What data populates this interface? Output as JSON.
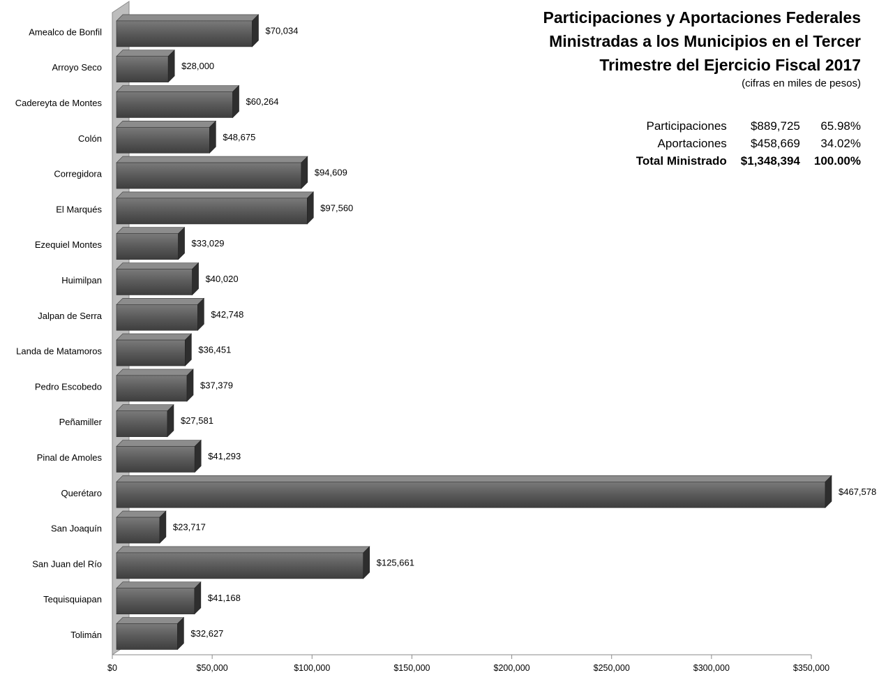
{
  "title_lines": [
    "Participaciones y Aportaciones Federales",
    "Ministradas a los Municipios en el Tercer",
    "Trimestre del Ejercicio Fiscal 2017"
  ],
  "subtitle": "(cifras en miles de pesos)",
  "summary": [
    {
      "label": "Participaciones",
      "amount": "$889,725",
      "percent": "65.98%"
    },
    {
      "label": "Aportaciones",
      "amount": "$458,669",
      "percent": "34.02%"
    },
    {
      "label": "Total Ministrado",
      "amount": "$1,348,394",
      "percent": "100.00%"
    }
  ],
  "chart_data": {
    "type": "bar",
    "orientation": "horizontal",
    "categories": [
      "Amealco de Bonfil",
      "Arroyo Seco",
      "Cadereyta de Montes",
      "Colón",
      "Corregidora",
      "El Marqués",
      "Ezequiel Montes",
      "Huimilpan",
      "Jalpan de Serra",
      "Landa de Matamoros",
      "Pedro Escobedo",
      "Peñamiller",
      "Pinal de Amoles",
      "Querétaro",
      "San Joaquín",
      "San Juan del Río",
      "Tequisquiapan",
      "Tolimán"
    ],
    "values": [
      70034,
      28000,
      60264,
      48675,
      94609,
      97560,
      33029,
      40020,
      42748,
      36451,
      37379,
      27581,
      41293,
      467578,
      23717,
      125661,
      41168,
      32627
    ],
    "value_labels": [
      "$70,034",
      "$28,000",
      "$60,264",
      "$48,675",
      "$94,609",
      "$97,560",
      "$33,029",
      "$40,020",
      "$42,748",
      "$36,451",
      "$37,379",
      "$27,581",
      "$41,293",
      "$467,578",
      "$23,717",
      "$125,661",
      "$41,168",
      "$32,627"
    ],
    "xlim": [
      0,
      350000
    ],
    "x_ticks": [
      0,
      50000,
      100000,
      150000,
      200000,
      250000,
      300000,
      350000
    ],
    "x_tick_labels": [
      "$0",
      "$50,000",
      "$100,000",
      "$150,000",
      "$200,000",
      "$250,000",
      "$300,000",
      "$350,000"
    ],
    "bar_color": "#555555",
    "grid": false,
    "legend": "none"
  }
}
